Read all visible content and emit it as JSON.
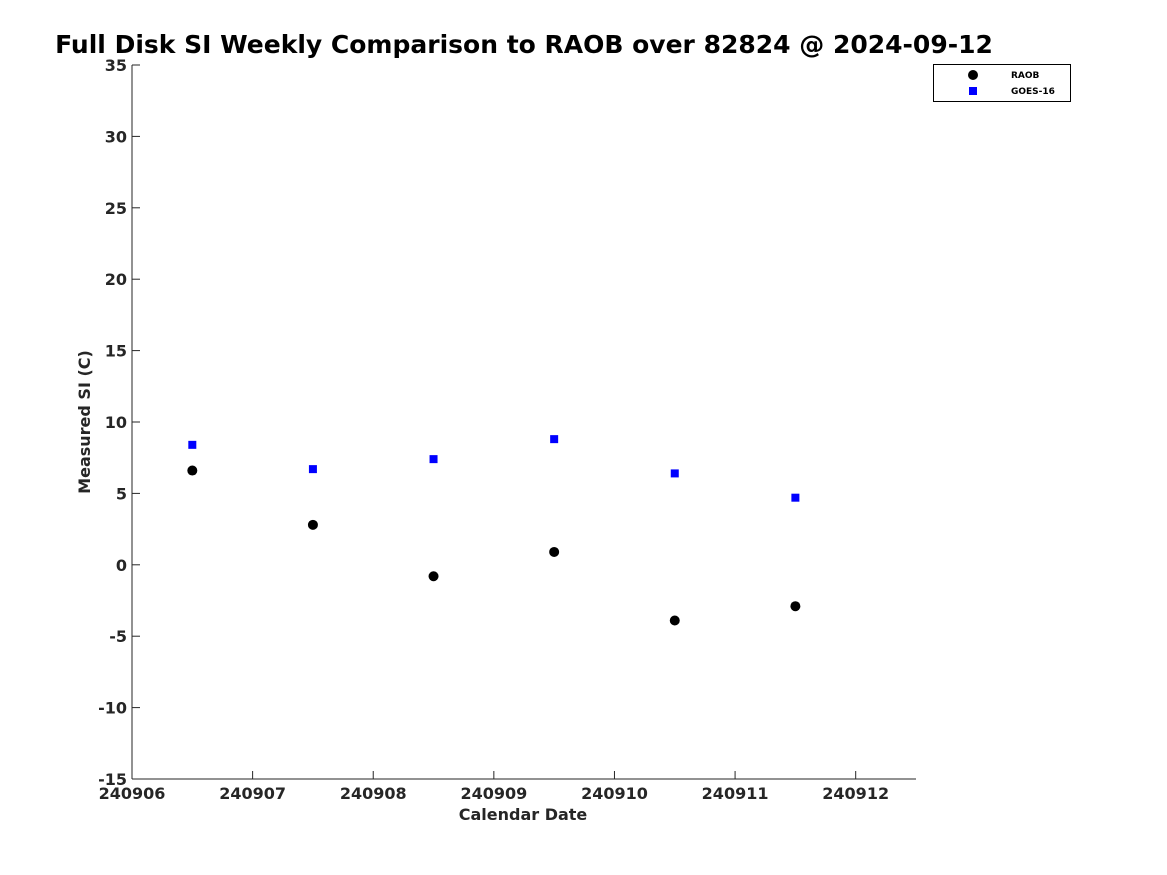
{
  "chart_data": {
    "type": "scatter",
    "title": "Full Disk SI Weekly Comparison to RAOB over 82824 @ 2024-09-12",
    "xlabel": "Calendar Date",
    "ylabel": "Measured SI (C)",
    "xlim": [
      240906,
      240912.5
    ],
    "ylim": [
      -15,
      35
    ],
    "x_ticks": [
      240906,
      240907,
      240908,
      240909,
      240910,
      240911,
      240912
    ],
    "x_tick_labels": [
      "240906",
      "240907",
      "240908",
      "240909",
      "240910",
      "240911",
      "240912"
    ],
    "y_ticks": [
      -15,
      -10,
      -5,
      0,
      5,
      10,
      15,
      20,
      25,
      30,
      35
    ],
    "y_tick_labels": [
      "-15",
      "-10",
      "-5",
      "0",
      "5",
      "10",
      "15",
      "20",
      "25",
      "30",
      "35"
    ],
    "grid": false,
    "legend_position": "top-right",
    "series": [
      {
        "name": "RAOB",
        "marker": "circle",
        "color": "#000000",
        "x": [
          240906.5,
          240907.5,
          240908.5,
          240909.5,
          240910.5,
          240911.5
        ],
        "y": [
          6.6,
          2.8,
          -0.8,
          0.9,
          -3.9,
          -2.9
        ]
      },
      {
        "name": "GOES-16",
        "marker": "square",
        "color": "#0000ff",
        "x": [
          240906.5,
          240907.5,
          240908.5,
          240909.5,
          240910.5,
          240911.5
        ],
        "y": [
          8.4,
          6.7,
          7.4,
          8.8,
          6.4,
          4.7
        ]
      }
    ]
  }
}
